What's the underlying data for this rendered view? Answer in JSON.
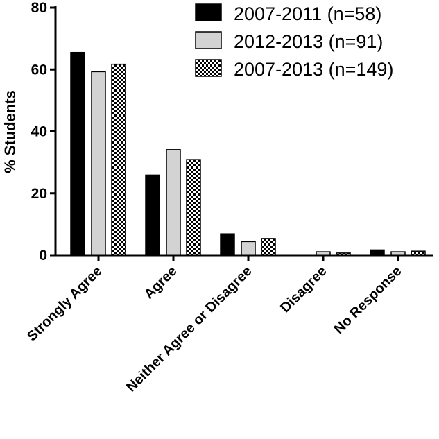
{
  "chart_data": {
    "type": "bar",
    "title": "",
    "xlabel": "",
    "ylabel": "% Students",
    "ylim": [
      0,
      80
    ],
    "yticks": [
      0,
      20,
      40,
      60,
      80
    ],
    "grid": false,
    "legend_placement": "top-right",
    "categories": [
      "Strongly Agree",
      "Agree",
      "Neither Agree or Disagree",
      "Disagree",
      "No Response"
    ],
    "series": [
      {
        "name": "2007-2011 (n=58)",
        "fill": "black",
        "color": "#000000",
        "values": [
          65.5,
          25.9,
          6.9,
          0,
          1.7
        ]
      },
      {
        "name": "2012-2013 (n=91)",
        "fill": "light-gray",
        "color": "#d3d3d3",
        "values": [
          59.3,
          34.1,
          4.4,
          1.1,
          1.1
        ]
      },
      {
        "name": "2007-2013 (n=149)",
        "fill": "checkerboard",
        "color": "#000000",
        "values": [
          61.7,
          30.9,
          5.4,
          0.7,
          1.3
        ]
      }
    ]
  }
}
